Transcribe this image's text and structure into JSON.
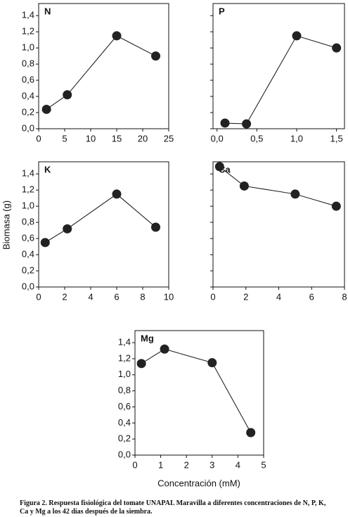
{
  "chart_data": [
    {
      "type": "line",
      "title": "N",
      "x": [
        1.5,
        5.5,
        15,
        22.5
      ],
      "values": [
        0.24,
        0.42,
        1.15,
        0.9
      ],
      "color": "#222222",
      "xlim": [
        0,
        25
      ],
      "xticks": [
        0,
        5,
        10,
        15,
        20,
        25
      ],
      "ylim": [
        0,
        1.55
      ],
      "yticks": [
        {
          "value": 0,
          "label": "0,0"
        },
        {
          "value": 0.2,
          "label": "0,2"
        },
        {
          "value": 0.4,
          "label": "0,4"
        },
        {
          "value": 0.6,
          "label": "0,6"
        },
        {
          "value": 0.8,
          "label": "0,8"
        },
        {
          "value": 1.0,
          "label": "1,0"
        },
        {
          "value": 1.2,
          "label": "1,2"
        },
        {
          "value": 1.4,
          "label": "1,4"
        }
      ],
      "ytick_labels": true
    },
    {
      "type": "line",
      "title": "P",
      "x": [
        0.1,
        0.37,
        1.0,
        1.5
      ],
      "values": [
        0.07,
        0.06,
        1.15,
        1.0
      ],
      "color": "#222222",
      "xlim": [
        -0.05,
        1.6
      ],
      "xticks": [
        {
          "value": 0,
          "label": "0,0"
        },
        {
          "value": 0.5,
          "label": "0,5"
        },
        {
          "value": 1.0,
          "label": "1,0"
        },
        {
          "value": 1.5,
          "label": "1,5"
        }
      ],
      "ylim": [
        0,
        1.55
      ],
      "yticks": [
        0,
        0.2,
        0.4,
        0.6,
        0.8,
        1.0,
        1.2,
        1.4
      ],
      "ytick_labels": false
    },
    {
      "type": "line",
      "title": "K",
      "x": [
        0.5,
        2.2,
        6,
        9
      ],
      "values": [
        0.55,
        0.72,
        1.15,
        0.74
      ],
      "color": "#222222",
      "xlim": [
        0,
        10
      ],
      "xticks": [
        0,
        2,
        4,
        6,
        8,
        10
      ],
      "ylim": [
        0,
        1.55
      ],
      "yticks": [
        {
          "value": 0,
          "label": "0,0"
        },
        {
          "value": 0.2,
          "label": "0,2"
        },
        {
          "value": 0.4,
          "label": "0,4"
        },
        {
          "value": 0.6,
          "label": "0,6"
        },
        {
          "value": 0.8,
          "label": "0,8"
        },
        {
          "value": 1.0,
          "label": "1,0"
        },
        {
          "value": 1.2,
          "label": "1,2"
        },
        {
          "value": 1.4,
          "label": "1,4"
        }
      ],
      "ytick_labels": true
    },
    {
      "type": "line",
      "title": "Ca",
      "x": [
        0.4,
        1.9,
        5,
        7.5
      ],
      "values": [
        1.49,
        1.25,
        1.15,
        1.0
      ],
      "color": "#222222",
      "xlim": [
        0,
        8
      ],
      "xticks": [
        0,
        2,
        4,
        6,
        8
      ],
      "ylim": [
        0,
        1.55
      ],
      "yticks": [
        0,
        0.2,
        0.4,
        0.6,
        0.8,
        1.0,
        1.2,
        1.4
      ],
      "ytick_labels": false
    },
    {
      "type": "line",
      "title": "Mg",
      "x": [
        0.25,
        1.15,
        3,
        4.5
      ],
      "values": [
        1.14,
        1.32,
        1.15,
        0.28
      ],
      "color": "#222222",
      "xlim": [
        0,
        5
      ],
      "xticks": [
        0,
        1,
        2,
        3,
        4,
        5
      ],
      "ylim": [
        0,
        1.55
      ],
      "yticks": [
        {
          "value": 0,
          "label": "0,0"
        },
        {
          "value": 0.2,
          "label": "0,2"
        },
        {
          "value": 0.4,
          "label": "0,4"
        },
        {
          "value": 0.6,
          "label": "0,6"
        },
        {
          "value": 0.8,
          "label": "0,8"
        },
        {
          "value": 1.0,
          "label": "1,0"
        },
        {
          "value": 1.2,
          "label": "1,2"
        },
        {
          "value": 1.4,
          "label": "1,4"
        }
      ],
      "ytick_labels": true
    }
  ],
  "y_label": "Biomasa (g)",
  "x_label": "Concentración (mM)",
  "caption": "Figura 2. Respuesta fisiológica del tomate UNAPAL Maravilla a diferentes concentraciones de N, P, K, Ca y Mg a los 42 días después de la siembra."
}
